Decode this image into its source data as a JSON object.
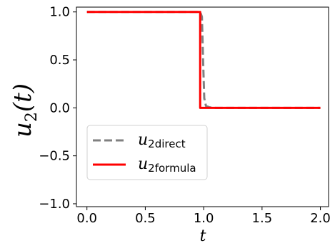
{
  "chart_data": {
    "type": "line",
    "title": "",
    "xlabel": "t",
    "ylabel": "u_2(t)",
    "ylabel_parts": {
      "base": "u",
      "sub": "2",
      "arg": "(t)"
    },
    "xlim": [
      -0.09,
      2.07
    ],
    "ylim": [
      -1.03,
      1.05
    ],
    "xticks": [
      0.0,
      0.5,
      1.0,
      1.5,
      2.0
    ],
    "xtick_labels": [
      "0.0",
      "0.5",
      "1.0",
      "1.5",
      "2.0"
    ],
    "yticks": [
      1.0,
      0.5,
      0.0,
      -0.5,
      -1.0
    ],
    "ytick_labels": [
      "1.0",
      "0.5",
      "0.0",
      "−0.5",
      "−1.0"
    ],
    "grid": false,
    "legend_position": "lower-left",
    "series": [
      {
        "name": "u_2direct",
        "name_parts": {
          "base": "u",
          "sub": "2direct"
        },
        "color": "#808080",
        "linestyle": "dashed",
        "x": [
          0.0,
          0.97,
          0.985,
          0.995,
          1.005,
          1.02,
          1.05,
          1.1,
          2.0
        ],
        "y": [
          1.0,
          1.0,
          0.95,
          0.5,
          0.1,
          0.02,
          0.005,
          0.0,
          0.0
        ]
      },
      {
        "name": "u_2formula",
        "name_parts": {
          "base": "u",
          "sub": "2formula"
        },
        "color": "#ff0000",
        "linestyle": "solid",
        "x": [
          0.0,
          0.97,
          0.97,
          2.0
        ],
        "y": [
          1.0,
          1.0,
          0.0,
          0.0
        ]
      }
    ]
  }
}
